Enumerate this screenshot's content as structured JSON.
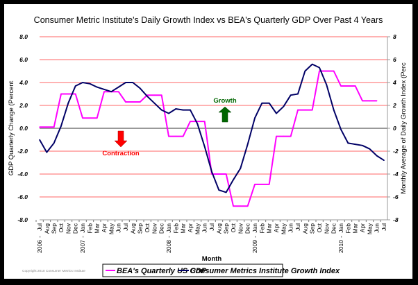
{
  "chart_data": {
    "type": "line",
    "title": "Consumer Metric Institute's Daily Growth Index vs BEA's Quarterly GDP Over Past 4 Years",
    "xlabel": "Month",
    "ylabel": "GDP Quarterly Change (Percent",
    "y2label": "Monthly Average of Daily Growth Index (Perc",
    "ylim": [
      -8,
      8
    ],
    "y2lim": [
      -8,
      8
    ],
    "y_ticks": [
      "8.0",
      "6.0",
      "4.0",
      "2.0",
      "0.0",
      "-2.0",
      "-4.0",
      "-6.0",
      "-8.0"
    ],
    "y2_ticks": [
      "8",
      "6",
      "4",
      "2",
      "0",
      "-2",
      "-4",
      "-6",
      "-8"
    ],
    "grid": true,
    "legend_position": "bottom",
    "x": [
      "Jul",
      "Aug",
      "Sep",
      "Oct",
      "Nov",
      "Dec",
      "Jan",
      "Feb",
      "Mar",
      "Apr",
      "May",
      "Jun",
      "Jul",
      "Aug",
      "Sep",
      "Oct",
      "Nov",
      "Dec",
      "Jan",
      "Feb",
      "Mar",
      "Apr",
      "May",
      "Jun",
      "Jul",
      "Aug",
      "Sep",
      "Oct",
      "Nov",
      "Dec",
      "Jan",
      "Feb",
      "Mar",
      "Apr",
      "May",
      "Jun",
      "Jul",
      "Aug",
      "Sep",
      "Oct",
      "Nov",
      "Dec",
      "Jan",
      "Feb",
      "Mar",
      "Apr",
      "May",
      "Jun",
      "Jul"
    ],
    "year_labels": [
      {
        "index": 0,
        "label": "2006"
      },
      {
        "index": 6,
        "label": "2007"
      },
      {
        "index": 18,
        "label": "2008"
      },
      {
        "index": 30,
        "label": "2009"
      },
      {
        "index": 42,
        "label": "2010"
      }
    ],
    "series": [
      {
        "name": "BEA's Quarterly US GDP",
        "color": "#ff00ff",
        "values": [
          0.1,
          0.1,
          0.1,
          3.0,
          3.0,
          3.0,
          0.9,
          0.9,
          0.9,
          3.2,
          3.2,
          3.2,
          2.3,
          2.3,
          2.3,
          2.9,
          2.9,
          2.9,
          -0.7,
          -0.7,
          -0.7,
          0.6,
          0.6,
          0.6,
          -4.0,
          -4.0,
          -4.0,
          -6.8,
          -6.8,
          -6.8,
          -4.9,
          -4.9,
          -4.9,
          -0.7,
          -0.7,
          -0.7,
          1.6,
          1.6,
          1.6,
          5.0,
          5.0,
          5.0,
          3.7,
          3.7,
          3.7,
          2.4,
          2.4,
          2.4,
          null
        ]
      },
      {
        "name": "Consumer Metrics Institute Growth Index",
        "color": "#000066",
        "values": [
          -1.0,
          -2.1,
          -1.3,
          0.2,
          2.2,
          3.7,
          4.0,
          3.9,
          3.6,
          3.4,
          3.2,
          3.6,
          4.0,
          4.0,
          3.5,
          2.8,
          2.2,
          1.6,
          1.3,
          1.7,
          1.6,
          1.6,
          0.4,
          -1.6,
          -3.8,
          -5.4,
          -5.6,
          -4.5,
          -3.5,
          -1.4,
          0.9,
          2.2,
          2.2,
          1.3,
          1.9,
          2.9,
          3.0,
          5.0,
          5.6,
          5.3,
          3.8,
          1.6,
          -0.1,
          -1.3,
          -1.4,
          -1.5,
          -1.8,
          -2.4,
          -2.8
        ]
      }
    ],
    "annotations": [
      {
        "text": "Growth",
        "color": "#006600",
        "arrow": "up"
      },
      {
        "text": "Contraction",
        "color": "#ff0000",
        "arrow": "down"
      }
    ],
    "colors": {
      "gridline": "#ff6666",
      "zeroline": "#999999"
    }
  },
  "footer": {
    "copyright": "Copyright 2010 Consumer Metrics Institute"
  }
}
